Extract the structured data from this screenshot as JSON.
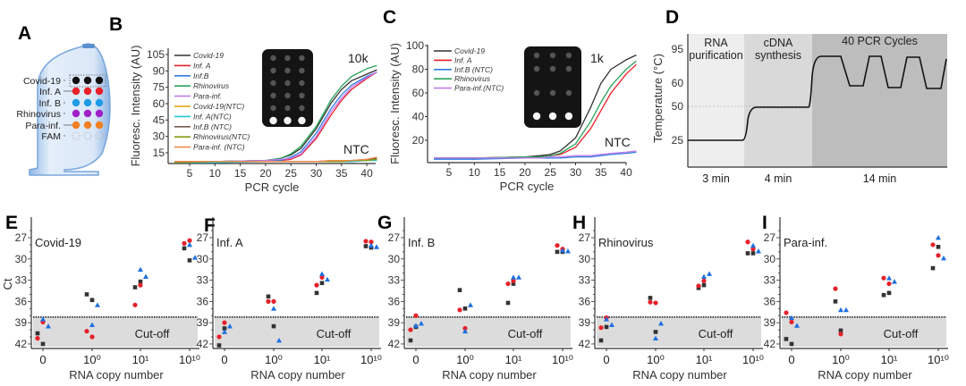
{
  "panel_labels": [
    "A",
    "B",
    "C",
    "D",
    "E",
    "F",
    "G",
    "H",
    "I"
  ],
  "panel_a": {
    "rows": [
      {
        "label": "Covid-19",
        "color": "#111111"
      },
      {
        "label": "Inf. A",
        "color": "#e8202a"
      },
      {
        "label": "Inf. B",
        "color": "#1e9be6"
      },
      {
        "label": "Rhinovirus",
        "color": "#a020c8"
      },
      {
        "label": "Para-inf.",
        "color": "#f07f22"
      },
      {
        "label": "FAM",
        "color": "none"
      }
    ]
  },
  "chart_data": [
    {
      "panel": "B",
      "type": "line",
      "xlabel": "PCR cycle",
      "ylabel": "Fluoresc. Intensity (AU)",
      "xticks": [
        5,
        10,
        15,
        20,
        25,
        30,
        35,
        40
      ],
      "yticks": [
        15,
        30,
        45,
        60,
        75,
        90,
        105
      ],
      "xlim": [
        0,
        42
      ],
      "ylim": [
        5,
        108
      ],
      "legend": "top-left",
      "annotations": [
        "10k",
        "NTC"
      ],
      "x": [
        2,
        10,
        20,
        23,
        25,
        27,
        30,
        33,
        35,
        37,
        40,
        42
      ],
      "series": [
        {
          "name": "Covid-19",
          "color": "#333333",
          "values": [
            7,
            7,
            8,
            10,
            13,
            19,
            37,
            61,
            73,
            81,
            87,
            91
          ]
        },
        {
          "name": "Inf. A",
          "color": "#e8202a",
          "values": [
            7,
            7,
            8,
            8,
            9,
            13,
            28,
            50,
            63,
            73,
            83,
            89
          ]
        },
        {
          "name": "Inf.B",
          "color": "#2f7de0",
          "values": [
            6,
            7,
            8,
            8,
            11,
            16,
            33,
            56,
            68,
            77,
            85,
            89
          ]
        },
        {
          "name": "Rhinovirus",
          "color": "#2aa55a",
          "values": [
            7,
            7,
            8,
            10,
            14,
            21,
            39,
            64,
            76,
            85,
            92,
            95
          ]
        },
        {
          "name": "Para-inf.",
          "color": "#c07cf0",
          "values": [
            7,
            7,
            8,
            9,
            10,
            14,
            30,
            53,
            65,
            75,
            84,
            89
          ]
        },
        {
          "name": "Covid-19(NTC)",
          "color": "#e0a000",
          "values": [
            7,
            7,
            7,
            7,
            7,
            7,
            7,
            7,
            7,
            8,
            8,
            9
          ]
        },
        {
          "name": "Inf. A(NTC)",
          "color": "#20c8d0",
          "values": [
            6,
            6,
            7,
            7,
            7,
            7,
            7,
            7,
            7,
            7,
            8,
            8
          ]
        },
        {
          "name": "Inf.B (NTC)",
          "color": "#7a5a50",
          "values": [
            7,
            7,
            7,
            7,
            7,
            7,
            7,
            8,
            8,
            8,
            9,
            10
          ]
        },
        {
          "name": "Rhinovirus(NTC)",
          "color": "#8a9a10",
          "values": [
            6,
            7,
            7,
            7,
            7,
            7,
            7,
            7,
            7,
            8,
            8,
            9
          ]
        },
        {
          "name": "Para-inf.  (NTC)",
          "color": "#f08a50",
          "values": [
            7,
            7,
            7,
            7,
            7,
            7,
            7,
            8,
            8,
            8,
            9,
            11
          ]
        }
      ]
    },
    {
      "panel": "C",
      "type": "line",
      "xlabel": "PCR cycle",
      "ylabel": "Fluoresc. Intensity (AU)",
      "xticks": [
        5,
        10,
        15,
        20,
        25,
        30,
        35,
        40
      ],
      "yticks": [
        20,
        40,
        60,
        80,
        100
      ],
      "xlim": [
        0,
        42
      ],
      "ylim": [
        0,
        100
      ],
      "legend": "top-left",
      "annotations": [
        "1k",
        "NTC"
      ],
      "x": [
        2,
        10,
        20,
        23,
        25,
        27,
        30,
        33,
        35,
        37,
        40,
        42
      ],
      "series": [
        {
          "name": "Covid-19",
          "color": "#333333",
          "values": [
            5,
            5,
            6,
            7,
            8,
            11,
            22,
            48,
            68,
            80,
            88,
            92
          ]
        },
        {
          "name": "Inf. A",
          "color": "#e8202a",
          "values": [
            5,
            5,
            6,
            6,
            7,
            8,
            14,
            30,
            45,
            60,
            76,
            84
          ]
        },
        {
          "name": "Inf.B (NTC)",
          "color": "#2f7de0",
          "values": [
            4,
            4,
            5,
            5,
            5,
            5,
            6,
            6,
            7,
            8,
            9,
            10
          ]
        },
        {
          "name": "Rhinovirus",
          "color": "#2aa55a",
          "values": [
            5,
            5,
            6,
            6,
            7,
            9,
            17,
            36,
            52,
            66,
            80,
            87
          ]
        },
        {
          "name": "Para-inf.(NTC)",
          "color": "#c07cf0",
          "values": [
            5,
            5,
            5,
            5,
            6,
            6,
            7,
            7,
            8,
            9,
            10,
            11
          ]
        }
      ]
    },
    {
      "panel": "D",
      "type": "line",
      "ylabel": "Temperature (°C)",
      "yticks": [
        25,
        50,
        60,
        95
      ],
      "stages": [
        {
          "label_lines": [
            "RNA",
            "purification"
          ],
          "duration": "3 min",
          "temp": 25,
          "shade": "#eeeeee"
        },
        {
          "label_lines": [
            "cDNA",
            "synthesis"
          ],
          "duration": "4 min",
          "temp": 50,
          "shade": "#d9d9d9"
        },
        {
          "label_lines": [
            "40 PCR Cycles"
          ],
          "duration": "14 min",
          "temps": [
            95,
            60
          ],
          "shade": "#bdbdbd"
        }
      ]
    },
    {
      "panel": "E",
      "type": "scatter",
      "title": "Covid-19",
      "ylabel": "Ct",
      "xlabel": "RNA copy number",
      "categories": [
        "0",
        "10⁰",
        "10¹",
        "10¹⁰"
      ],
      "yticks": [
        27,
        30,
        33,
        36,
        39,
        42
      ],
      "ylim": [
        42.5,
        25
      ],
      "y_inverted": true,
      "cutoff": 38.2,
      "cutoff_label": "Cut-off",
      "series": [
        {
          "color": "#333333",
          "marker": "square",
          "values": [
            [
              40.5,
              42.0
            ],
            [
              35.0,
              35.8
            ],
            [
              34.0,
              33.2
            ],
            [
              28.5,
              30.2
            ]
          ]
        },
        {
          "color": "#e8202a",
          "marker": "circle",
          "values": [
            [
              41.2,
              38.9
            ],
            [
              40.2,
              41.0
            ],
            [
              36.5,
              33.7
            ],
            [
              27.8,
              27.4
            ]
          ]
        },
        {
          "color": "#1e6fe0",
          "marker": "triangle",
          "values": [
            [
              38.5,
              39.5
            ],
            [
              39.3,
              36.5
            ],
            [
              31.5,
              32.5
            ],
            [
              28.0,
              29.8
            ]
          ]
        }
      ]
    },
    {
      "panel": "F",
      "type": "scatter",
      "title": "Inf. A",
      "xlabel": "RNA copy number",
      "categories": [
        "0",
        "10⁰",
        "10¹",
        "10¹⁰"
      ],
      "yticks": [
        27,
        30,
        33,
        36,
        39,
        42
      ],
      "ylim": [
        42.5,
        25
      ],
      "y_inverted": true,
      "cutoff": 38.2,
      "cutoff_label": "Cut-off",
      "series": [
        {
          "color": "#333333",
          "marker": "square",
          "values": [
            [
              42.2,
              39.8
            ],
            [
              35.3,
              39.5
            ],
            [
              34.8,
              33.4
            ],
            [
              28.2,
              28.4
            ]
          ]
        },
        {
          "color": "#e8202a",
          "marker": "circle",
          "values": [
            [
              41.0,
              39.0
            ],
            [
              36.0,
              36.0
            ],
            [
              33.7,
              32.6
            ],
            [
              27.5,
              27.6
            ]
          ]
        },
        {
          "color": "#1e6fe0",
          "marker": "triangle",
          "values": [
            [
              40.3,
              39.5
            ],
            [
              37.0,
              41.5
            ],
            [
              32.1,
              32.9
            ],
            [
              28.1,
              28.3
            ]
          ]
        }
      ]
    },
    {
      "panel": "G",
      "type": "scatter",
      "title": "Inf. B",
      "xlabel": "RNA copy number",
      "categories": [
        "0",
        "10⁰",
        "10¹",
        "10¹⁰"
      ],
      "yticks": [
        27,
        30,
        33,
        36,
        39,
        42
      ],
      "ylim": [
        42.5,
        25
      ],
      "y_inverted": true,
      "cutoff": 38.2,
      "cutoff_label": "Cut-off",
      "series": [
        {
          "color": "#333333",
          "marker": "square",
          "values": [
            [
              41.5,
              39.6
            ],
            [
              34.4,
              37.0
            ],
            [
              36.2,
              33.5
            ],
            [
              29.0,
              29.0
            ]
          ]
        },
        {
          "color": "#e8202a",
          "marker": "circle",
          "values": [
            [
              40.0,
              38.0
            ],
            [
              37.2,
              39.8
            ],
            [
              33.5,
              33.1
            ],
            [
              28.1,
              28.6
            ]
          ]
        },
        {
          "color": "#1e6fe0",
          "marker": "triangle",
          "values": [
            [
              39.4,
              39.1
            ],
            [
              40.2,
              36.5
            ],
            [
              32.6,
              32.6
            ],
            [
              28.8,
              28.9
            ]
          ]
        }
      ]
    },
    {
      "panel": "H",
      "type": "scatter",
      "title": "Rhinovirus",
      "xlabel": "RNA copy number",
      "categories": [
        "0",
        "10⁰",
        "10¹",
        "10¹⁰"
      ],
      "yticks": [
        27,
        30,
        33,
        36,
        39,
        42
      ],
      "ylim": [
        42.5,
        25
      ],
      "y_inverted": true,
      "cutoff": 38.2,
      "cutoff_label": "Cut-off",
      "series": [
        {
          "color": "#333333",
          "marker": "square",
          "values": [
            [
              41.5,
              39.6
            ],
            [
              35.5,
              40.3
            ],
            [
              34.1,
              33.7
            ],
            [
              29.2,
              29.2
            ]
          ]
        },
        {
          "color": "#e8202a",
          "marker": "circle",
          "values": [
            [
              39.7,
              38.3
            ],
            [
              36.1,
              36.2
            ],
            [
              33.8,
              33.1
            ],
            [
              27.6,
              28.6
            ]
          ]
        },
        {
          "color": "#1e6fe0",
          "marker": "triangle",
          "values": [
            [
              38.5,
              39.3
            ],
            [
              41.2,
              39.1
            ],
            [
              32.5,
              32.1
            ],
            [
              28.1,
              28.9
            ]
          ]
        }
      ]
    },
    {
      "panel": "I",
      "type": "scatter",
      "title": "Para-inf.",
      "xlabel": "RNA copy number",
      "categories": [
        "0",
        "10⁰",
        "10¹",
        "10¹⁰"
      ],
      "yticks": [
        27,
        30,
        33,
        36,
        39,
        42
      ],
      "ylim": [
        42.5,
        25
      ],
      "y_inverted": true,
      "cutoff": 38.2,
      "cutoff_label": "Cut-off",
      "series": [
        {
          "color": "#333333",
          "marker": "square",
          "values": [
            [
              41.3,
              42.0
            ],
            [
              36.0,
              40.1
            ],
            [
              35.1,
              34.8
            ],
            [
              31.3,
              28.3
            ]
          ]
        },
        {
          "color": "#e8202a",
          "marker": "circle",
          "values": [
            [
              37.6,
              38.9
            ],
            [
              34.2,
              40.6
            ],
            [
              32.7,
              33.5
            ],
            [
              28.0,
              29.5
            ]
          ]
        },
        {
          "color": "#1e6fe0",
          "marker": "triangle",
          "values": [
            [
              38.3,
              39.4
            ],
            [
              37.2,
              37.2
            ],
            [
              32.7,
              33.2
            ],
            [
              27.0,
              29.9
            ]
          ]
        }
      ]
    }
  ]
}
